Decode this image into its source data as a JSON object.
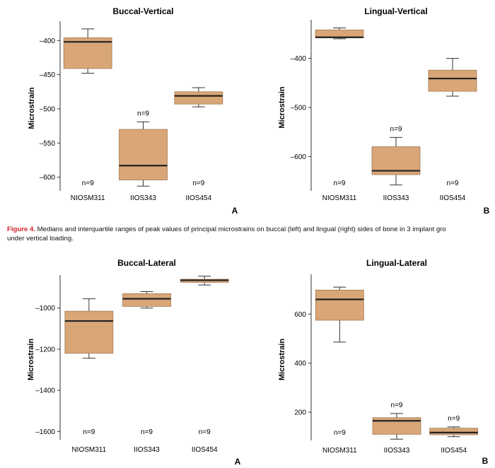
{
  "figure": {
    "caption_lead": "Figure 4.",
    "caption_line1": " Medians and interquartile ranges of peak values of principal microstrains on buccal (left) and lingual (right) sides of bone in 3 implant gro",
    "caption_line2": "under vertical loading."
  },
  "colors": {
    "box_fill": "#d8a677",
    "box_stroke": "#a37a55",
    "median": "#222222",
    "axis": "#333333"
  },
  "chart_data": [
    {
      "type": "box",
      "title": "Buccal-Vertical",
      "ylabel": "Microstrain",
      "panel_letter": "A",
      "categories": [
        "NIOSM311",
        "IIOS343",
        "IIOS454"
      ],
      "ylim": [
        -620,
        -378
      ],
      "yticks": [
        -400,
        -450,
        -500,
        -550,
        -600
      ],
      "ytick_labels": [
        "–400",
        "–450",
        "–500",
        "–550",
        "–600"
      ],
      "boxes": [
        {
          "min": -448,
          "q1": -441,
          "median": -402,
          "q3": -396,
          "max": -383,
          "n_label": "n=9",
          "n_pos": "bottom"
        },
        {
          "min": -613,
          "q1": -604,
          "median": -583,
          "q3": -530,
          "max": -519,
          "n_label": "n=9",
          "n_pos": "above"
        },
        {
          "min": -497,
          "q1": -493,
          "median": -481,
          "q3": -475,
          "max": -469,
          "n_label": "n=9",
          "n_pos": "bottom"
        }
      ]
    },
    {
      "type": "box",
      "title": "Lingual-Vertical",
      "ylabel": "Microstrain",
      "panel_letter": "B",
      "categories": [
        "NIOSM311",
        "IIOS343",
        "IIOS454"
      ],
      "ylim": [
        -670,
        -330
      ],
      "yticks": [
        -400,
        -500,
        -600
      ],
      "ytick_labels": [
        "–400",
        "–500",
        "–600"
      ],
      "boxes": [
        {
          "min": -360,
          "q1": -358,
          "median": -357,
          "q3": -342,
          "max": -338,
          "n_label": "n=9",
          "n_pos": "bottom"
        },
        {
          "min": -658,
          "q1": -637,
          "median": -629,
          "q3": -580,
          "max": -561,
          "n_label": "n=9",
          "n_pos": "above"
        },
        {
          "min": -477,
          "q1": -467,
          "median": -441,
          "q3": -424,
          "max": -400,
          "n_label": "n=9",
          "n_pos": "bottom"
        }
      ]
    },
    {
      "type": "box",
      "title": "Buccal-Lateral",
      "ylabel": "Microstrain",
      "panel_letter": "A",
      "categories": [
        "NIOSM311",
        "IIOS343",
        "IIOS454"
      ],
      "ylim": [
        -1640,
        -860
      ],
      "yticks": [
        -1000,
        -1200,
        -1400,
        -1600
      ],
      "ytick_labels": [
        "–1000",
        "–1200",
        "–1400",
        "–1600"
      ],
      "boxes": [
        {
          "min": -1244,
          "q1": -1220,
          "median": -1063,
          "q3": -1015,
          "max": -955,
          "n_label": "n=9",
          "n_pos": "bottom"
        },
        {
          "min": -1000,
          "q1": -992,
          "median": -955,
          "q3": -930,
          "max": -920,
          "n_label": "n=9",
          "n_pos": "bottom"
        },
        {
          "min": -888,
          "q1": -875,
          "median": -865,
          "q3": -860,
          "max": -845,
          "n_label": "n=9",
          "n_pos": "bottom"
        }
      ]
    },
    {
      "type": "box",
      "title": "Lingual-Lateral",
      "ylabel": "Microstrain",
      "panel_letter": "B",
      "categories": [
        "NIOSM311",
        "IIOS343",
        "IIOS454"
      ],
      "ylim": [
        85,
        745
      ],
      "yticks": [
        600,
        400,
        200
      ],
      "ytick_labels": [
        "600",
        "400",
        "200"
      ],
      "boxes": [
        {
          "min": 486,
          "q1": 575,
          "median": 660,
          "q3": 698,
          "max": 710,
          "n_label": "n=9",
          "n_pos": "bottom"
        },
        {
          "min": 90,
          "q1": 110,
          "median": 165,
          "q3": 178,
          "max": 195,
          "n_label": "n=9",
          "n_pos": "above"
        },
        {
          "min": 100,
          "q1": 108,
          "median": 117,
          "q3": 135,
          "max": 140,
          "n_label": "n=9",
          "n_pos": "above"
        }
      ]
    }
  ]
}
